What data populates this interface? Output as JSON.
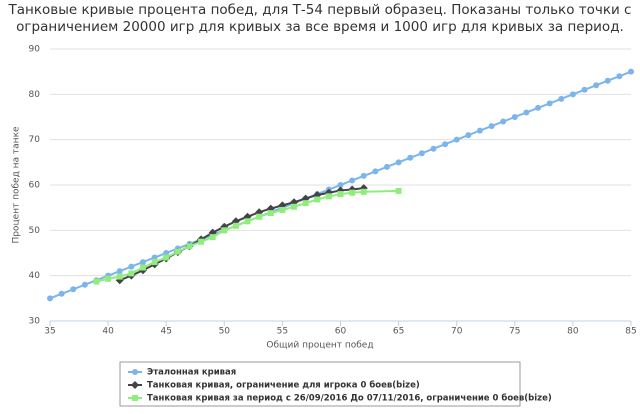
{
  "chart_data": {
    "type": "line",
    "title": [
      "Танковые кривые процента побед, для Т-54 первый образец. Показаны только точки с",
      "ограничением 20000 игр для кривых за все время и 1000 игр для кривых за период."
    ],
    "x_label": "Общий процент побед",
    "y_label": "Процент побед на танке",
    "xlim": [
      35,
      85
    ],
    "xticks": [
      35,
      40,
      45,
      50,
      55,
      60,
      65,
      70,
      75,
      80,
      85
    ],
    "ylim": [
      30,
      90
    ],
    "yticks": [
      30,
      40,
      50,
      60,
      70,
      80,
      90
    ],
    "grid": true,
    "series": [
      {
        "name": "Эталонная кривая",
        "color": "#7cb5ec",
        "marker": "circle",
        "x": [
          35,
          36,
          37,
          38,
          39,
          40,
          41,
          42,
          43,
          44,
          45,
          46,
          47,
          48,
          49,
          50,
          51,
          52,
          53,
          54,
          55,
          56,
          57,
          58,
          59,
          60,
          61,
          62,
          63,
          64,
          65,
          66,
          67,
          68,
          69,
          70,
          71,
          72,
          73,
          74,
          75,
          76,
          77,
          78,
          79,
          80,
          81,
          82,
          83,
          84,
          85
        ],
        "values": [
          35,
          36,
          37,
          38,
          39,
          40,
          41,
          42,
          43,
          44,
          45,
          46,
          47,
          48,
          49,
          50,
          51,
          52,
          53,
          54,
          55,
          56,
          57,
          58,
          59,
          60,
          61,
          62,
          63,
          64,
          65,
          66,
          67,
          68,
          69,
          70,
          71,
          72,
          73,
          74,
          75,
          76,
          77,
          78,
          79,
          80,
          81,
          82,
          83,
          84,
          85
        ]
      },
      {
        "name": "Танковая кривая, ограничение для игрока 0 боев(bize)",
        "color": "#434348",
        "marker": "diamond",
        "x": [
          41,
          42,
          43,
          44,
          45,
          46,
          47,
          48,
          49,
          50,
          51,
          52,
          53,
          54,
          55,
          56,
          57,
          58,
          59,
          60,
          61,
          62
        ],
        "values": [
          39,
          40,
          41.2,
          42.5,
          43.8,
          45.2,
          46.5,
          48,
          49.5,
          50.8,
          52,
          53,
          54,
          54.8,
          55.5,
          56.2,
          57,
          57.8,
          58.3,
          58.8,
          59,
          59.3
        ]
      },
      {
        "name": "Танковая кривая за период с 26/09/2016 До 07/11/2016, ограничение 0 боев(bize)",
        "color": "#90ed7d",
        "marker": "square",
        "x": [
          39,
          40,
          41,
          42,
          43,
          44,
          45,
          46,
          47,
          48,
          49,
          50,
          51,
          52,
          53,
          54,
          55,
          56,
          57,
          58,
          59,
          60,
          61,
          62,
          65
        ],
        "values": [
          38.7,
          39.3,
          39.8,
          40.5,
          41.8,
          43,
          44,
          45.3,
          46.5,
          47.5,
          48.5,
          50,
          51,
          52,
          53,
          53.8,
          54.5,
          55.2,
          56,
          56.8,
          57.5,
          58,
          58.3,
          58.5,
          58.7
        ]
      }
    ]
  }
}
